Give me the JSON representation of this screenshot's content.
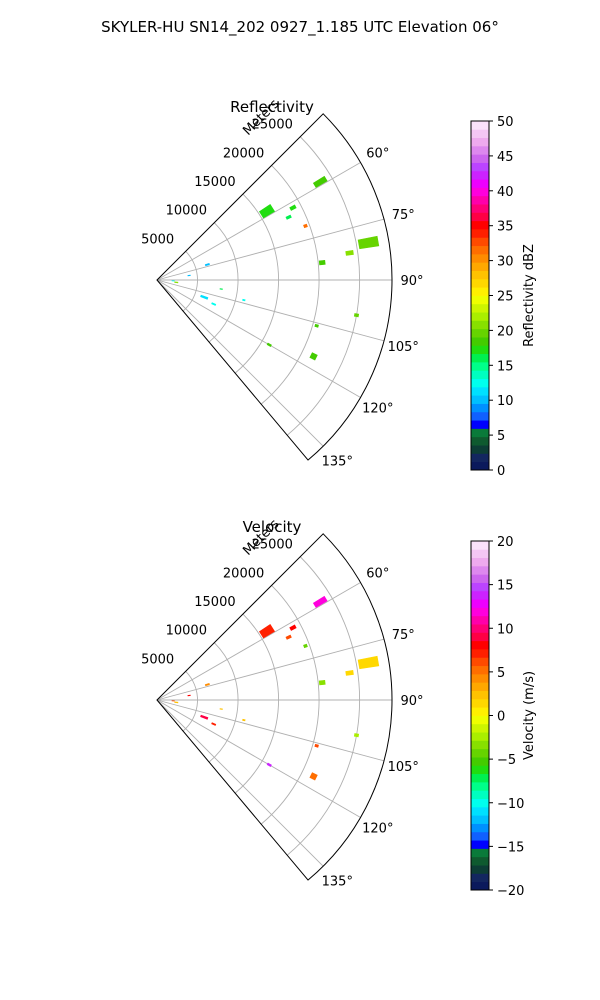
{
  "figure": {
    "title": "SKYLER-HU  SN14_202  0927_1.185 UTC Elevation 06°"
  },
  "chart_data": [
    {
      "type": "heatmap",
      "title": "Reflectivity",
      "projection": "polar-sector",
      "angle_range_deg": [
        45,
        140
      ],
      "angle_ticks_deg": [
        60,
        75,
        90,
        105,
        120,
        135
      ],
      "angle_tick_labels": [
        "60°",
        "75°",
        "90°",
        "105°",
        "120°",
        "135°"
      ],
      "range_ticks_m": [
        5000,
        10000,
        15000,
        20000,
        25000
      ],
      "range_tick_labels": [
        "5000",
        "10000",
        "15000",
        "20000",
        "25000"
      ],
      "range_label": "Meters",
      "range_max_m": 29000,
      "grid": true,
      "colorbar": {
        "label": "Reflectivity dBZ",
        "min": 0,
        "max": 50,
        "ticks": [
          0,
          5,
          10,
          15,
          20,
          25,
          30,
          35,
          40,
          45,
          50
        ],
        "tick_labels": [
          "0",
          "5",
          "10",
          "15",
          "20",
          "25",
          "30",
          "35",
          "40",
          "45",
          "50"
        ],
        "colors": [
          "#0b1a5c",
          "#13265f",
          "#0d3d35",
          "#0f5a2f",
          "#0a7a3a",
          "#0000ff",
          "#1060ff",
          "#0090ff",
          "#00bfff",
          "#00e0ff",
          "#00ffee",
          "#00ffc0",
          "#00ff8a",
          "#00f050",
          "#20dd10",
          "#44cc00",
          "#66d400",
          "#88e000",
          "#aaee00",
          "#ccf500",
          "#eeff00",
          "#fff000",
          "#ffd800",
          "#ffc200",
          "#ffa800",
          "#ff8c00",
          "#ff6e00",
          "#ff4a00",
          "#ff2000",
          "#ff0000",
          "#ff0044",
          "#ff0077",
          "#ff00aa",
          "#ff00dd",
          "#ee00ff",
          "#cc22ff",
          "#bb44ff",
          "#cc66ee",
          "#dd88ee",
          "#eeaaee",
          "#f4c6f4",
          "#fbe2fb"
        ]
      },
      "echoes": [
        {
          "az": 59,
          "r": 23500,
          "dA": 1.6,
          "dR": 1600,
          "v": 19
        },
        {
          "az": 62,
          "r": 19000,
          "dA": 1.2,
          "dR": 700,
          "v": 17
        },
        {
          "az": 58,
          "r": 16000,
          "dA": 3.5,
          "dR": 1600,
          "v": 17
        },
        {
          "az": 64.5,
          "r": 18000,
          "dA": 1.0,
          "dR": 600,
          "v": 16
        },
        {
          "az": 70,
          "r": 19500,
          "dA": 1.0,
          "dR": 400,
          "v": 31
        },
        {
          "az": 80,
          "r": 26500,
          "dA": 2.5,
          "dR": 2400,
          "v": 20
        },
        {
          "az": 82,
          "r": 24000,
          "dA": 1.2,
          "dR": 900,
          "v": 21
        },
        {
          "az": 84,
          "r": 20500,
          "dA": 1.4,
          "dR": 700,
          "v": 19
        },
        {
          "az": 73,
          "r": 6500,
          "dA": 1.4,
          "dR": 500,
          "v": 10
        },
        {
          "az": 82,
          "r": 4000,
          "dA": 1.0,
          "dR": 300,
          "v": 10
        },
        {
          "az": 97,
          "r": 2400,
          "dA": 2.0,
          "dR": 400,
          "v": 21
        },
        {
          "az": 110,
          "r": 6200,
          "dA": 2.0,
          "dR": 900,
          "v": 11
        },
        {
          "az": 113,
          "r": 7600,
          "dA": 1.2,
          "dR": 500,
          "v": 12
        },
        {
          "az": 103,
          "r": 11000,
          "dA": 0.8,
          "dR": 300,
          "v": 13
        },
        {
          "az": 106,
          "r": 20500,
          "dA": 0.8,
          "dR": 400,
          "v": 18
        },
        {
          "az": 116,
          "r": 21500,
          "dA": 1.8,
          "dR": 700,
          "v": 18
        },
        {
          "az": 120,
          "r": 16000,
          "dA": 0.8,
          "dR": 500,
          "v": 18
        },
        {
          "az": 100,
          "r": 25000,
          "dA": 0.8,
          "dR": 500,
          "v": 20
        },
        {
          "az": 98,
          "r": 8000,
          "dA": 0.5,
          "dR": 300,
          "v": 16
        },
        {
          "az": 93,
          "r": 2000,
          "dA": 1.0,
          "dR": 300,
          "v": 13
        }
      ]
    },
    {
      "type": "heatmap",
      "title": "Velocity",
      "projection": "polar-sector",
      "angle_range_deg": [
        45,
        140
      ],
      "angle_ticks_deg": [
        60,
        75,
        90,
        105,
        120,
        135
      ],
      "angle_tick_labels": [
        "60°",
        "75°",
        "90°",
        "105°",
        "120°",
        "135°"
      ],
      "range_ticks_m": [
        5000,
        10000,
        15000,
        20000,
        25000
      ],
      "range_tick_labels": [
        "5000",
        "10000",
        "15000",
        "20000",
        "25000"
      ],
      "range_label": "Meters",
      "range_max_m": 29000,
      "grid": true,
      "colorbar": {
        "label": "Velocity (m/s)",
        "min": -20,
        "max": 20,
        "ticks": [
          -20,
          -15,
          -10,
          -5,
          0,
          5,
          10,
          15,
          20
        ],
        "tick_labels": [
          "−20",
          "−15",
          "−10",
          "−5",
          "0",
          "5",
          "10",
          "15",
          "20"
        ],
        "colors": [
          "#0b1a5c",
          "#13265f",
          "#0d3d35",
          "#0f5a2f",
          "#0a7a3a",
          "#0000ff",
          "#1060ff",
          "#0090ff",
          "#00bfff",
          "#00e0ff",
          "#00ffee",
          "#00ffc0",
          "#00ff8a",
          "#00f050",
          "#20dd10",
          "#44cc00",
          "#66d400",
          "#88e000",
          "#aaee00",
          "#ccf500",
          "#eeff00",
          "#fff000",
          "#ffd800",
          "#ffc200",
          "#ffa800",
          "#ff8c00",
          "#ff6e00",
          "#ff4a00",
          "#ff2000",
          "#ff0000",
          "#ff0044",
          "#ff0077",
          "#ff00aa",
          "#ff00dd",
          "#ee00ff",
          "#cc22ff",
          "#bb44ff",
          "#cc66ee",
          "#dd88ee",
          "#eeaaee",
          "#f4c6f4",
          "#fbe2fb"
        ]
      },
      "echoes": [
        {
          "az": 59,
          "r": 23500,
          "dA": 1.6,
          "dR": 1600,
          "v": 12
        },
        {
          "az": 62,
          "r": 19000,
          "dA": 1.2,
          "dR": 700,
          "v": 8
        },
        {
          "az": 58,
          "r": 16000,
          "dA": 3.5,
          "dR": 1600,
          "v": 7
        },
        {
          "az": 64.5,
          "r": 18000,
          "dA": 1.0,
          "dR": 600,
          "v": 6
        },
        {
          "az": 70,
          "r": 19500,
          "dA": 1.0,
          "dR": 400,
          "v": -4
        },
        {
          "az": 80,
          "r": 26500,
          "dA": 2.5,
          "dR": 2400,
          "v": 1
        },
        {
          "az": 82,
          "r": 24000,
          "dA": 1.2,
          "dR": 900,
          "v": 1
        },
        {
          "az": 84,
          "r": 20500,
          "dA": 1.4,
          "dR": 700,
          "v": -3
        },
        {
          "az": 73,
          "r": 6500,
          "dA": 1.4,
          "dR": 500,
          "v": 4
        },
        {
          "az": 82,
          "r": 4000,
          "dA": 1.0,
          "dR": 300,
          "v": 8
        },
        {
          "az": 97,
          "r": 2400,
          "dA": 2.0,
          "dR": 400,
          "v": 2
        },
        {
          "az": 110,
          "r": 6200,
          "dA": 2.0,
          "dR": 900,
          "v": 9
        },
        {
          "az": 113,
          "r": 7600,
          "dA": 1.2,
          "dR": 500,
          "v": 7
        },
        {
          "az": 103,
          "r": 11000,
          "dA": 0.8,
          "dR": 300,
          "v": 2
        },
        {
          "az": 106,
          "r": 20500,
          "dA": 0.8,
          "dR": 400,
          "v": 6
        },
        {
          "az": 116,
          "r": 21500,
          "dA": 1.8,
          "dR": 700,
          "v": 5
        },
        {
          "az": 120,
          "r": 16000,
          "dA": 0.8,
          "dR": 500,
          "v": 14
        },
        {
          "az": 100,
          "r": 25000,
          "dA": 0.8,
          "dR": 500,
          "v": -2
        },
        {
          "az": 98,
          "r": 8000,
          "dA": 0.5,
          "dR": 300,
          "v": 2
        },
        {
          "az": 93,
          "r": 2000,
          "dA": 1.0,
          "dR": 300,
          "v": 6
        }
      ]
    }
  ]
}
